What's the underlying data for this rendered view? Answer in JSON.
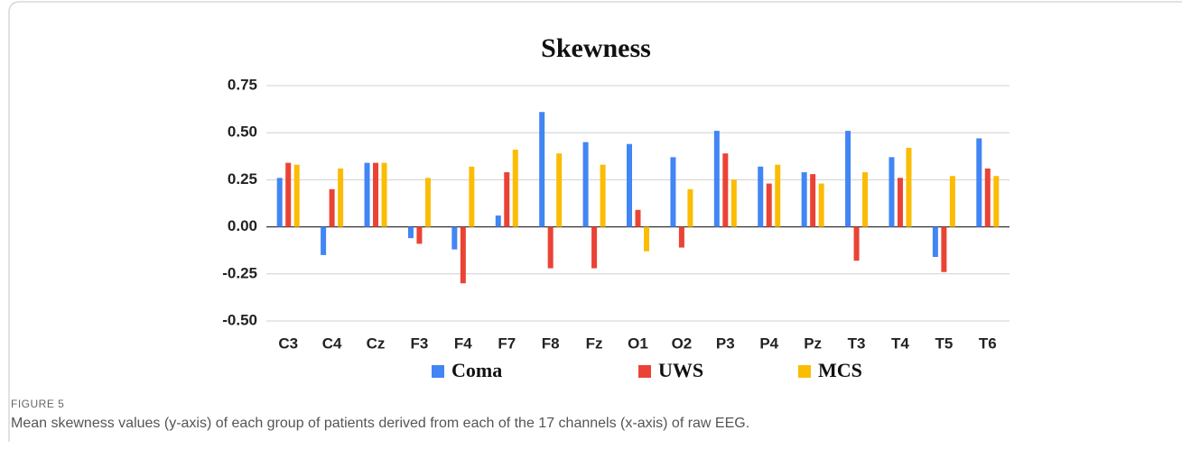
{
  "chart_data": {
    "type": "bar",
    "title": "Skewness",
    "categories": [
      "C3",
      "C4",
      "Cz",
      "F3",
      "F4",
      "F7",
      "F8",
      "Fz",
      "O1",
      "O2",
      "P3",
      "P4",
      "Pz",
      "T3",
      "T4",
      "T5",
      "T6"
    ],
    "series": [
      {
        "name": "Coma",
        "color": "#4285f4",
        "values": [
          0.26,
          -0.15,
          0.34,
          -0.06,
          -0.12,
          0.06,
          0.61,
          0.45,
          0.44,
          0.37,
          0.51,
          0.32,
          0.29,
          0.51,
          0.37,
          -0.16,
          0.47
        ]
      },
      {
        "name": "UWS",
        "color": "#ea4335",
        "values": [
          0.34,
          0.2,
          0.34,
          -0.09,
          -0.3,
          0.29,
          -0.22,
          -0.22,
          0.09,
          -0.11,
          0.39,
          0.23,
          0.28,
          -0.18,
          0.26,
          -0.24,
          0.31
        ]
      },
      {
        "name": "MCS",
        "color": "#fbbc04",
        "values": [
          0.33,
          0.31,
          0.34,
          0.26,
          0.32,
          0.41,
          0.39,
          0.33,
          -0.13,
          0.2,
          0.25,
          0.33,
          0.23,
          0.29,
          0.42,
          0.27,
          0.27
        ]
      }
    ],
    "ylim": [
      -0.5,
      0.75
    ],
    "yticks": [
      0.75,
      {
        "value": 0.5,
        "label": "0.50"
      },
      0.25,
      {
        "value": 0,
        "label": "0.00"
      },
      -0.25,
      {
        "value": -0.5,
        "label": "-0.50"
      }
    ],
    "grid": true,
    "legend": "bottom"
  },
  "figure": {
    "label": "FIGURE 5",
    "caption": "Mean skewness values (y-axis) of each group of patients derived from each of the 17 channels (x-axis) of raw EEG."
  }
}
